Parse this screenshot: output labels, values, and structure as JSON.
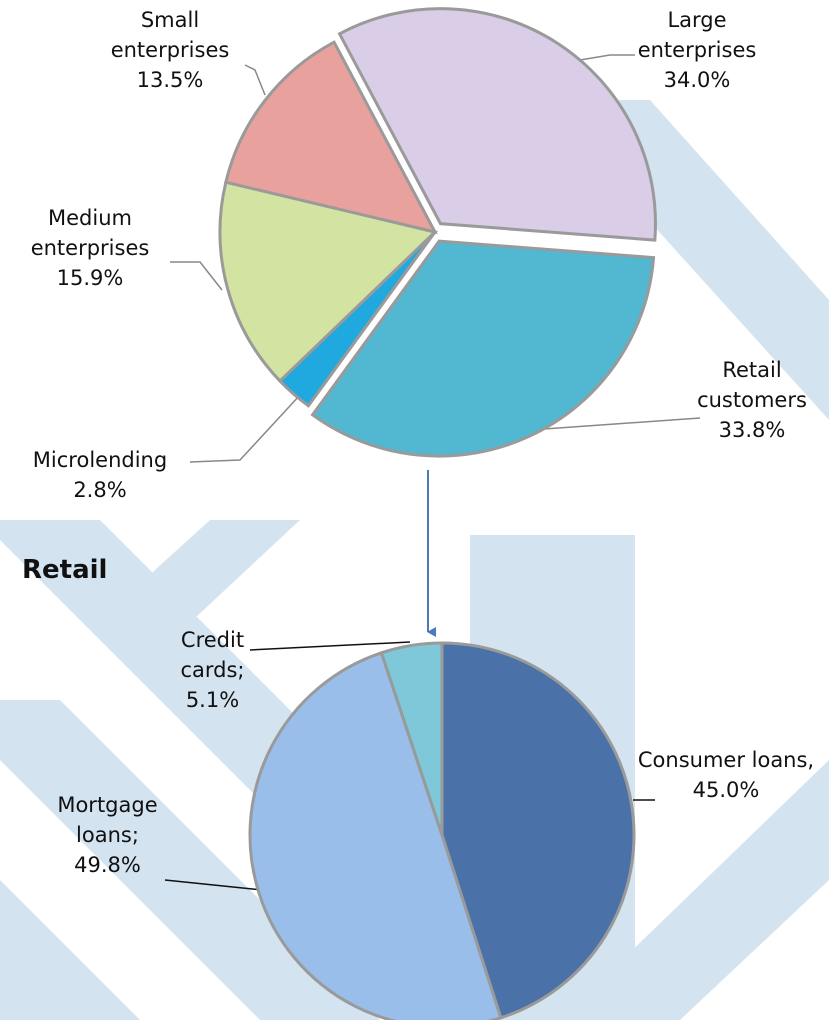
{
  "chart_data": [
    {
      "type": "pie",
      "categories": [
        "Large enterprises",
        "Retail customers",
        "Microlending",
        "Medium enterprises",
        "Small enterprises"
      ],
      "values": [
        34.0,
        33.8,
        2.8,
        15.9,
        13.5
      ],
      "value_labels": [
        "34.0%",
        "33.8%",
        "2.8%",
        "15.9%",
        "13.5%"
      ],
      "colors": [
        "#d9cde7",
        "#52b7d1",
        "#20a9df",
        "#d3e3a1",
        "#e8a19d"
      ]
    },
    {
      "type": "pie",
      "title": "Retail",
      "categories": [
        "Consumer loans,",
        "Mortgage loans;",
        "Credit cards;"
      ],
      "values": [
        45.0,
        49.8,
        5.1
      ],
      "value_labels": [
        "45.0%",
        "49.8%",
        "5.1%"
      ],
      "colors": [
        "#4a72a8",
        "#99bee9",
        "#7ec8da"
      ]
    }
  ]
}
